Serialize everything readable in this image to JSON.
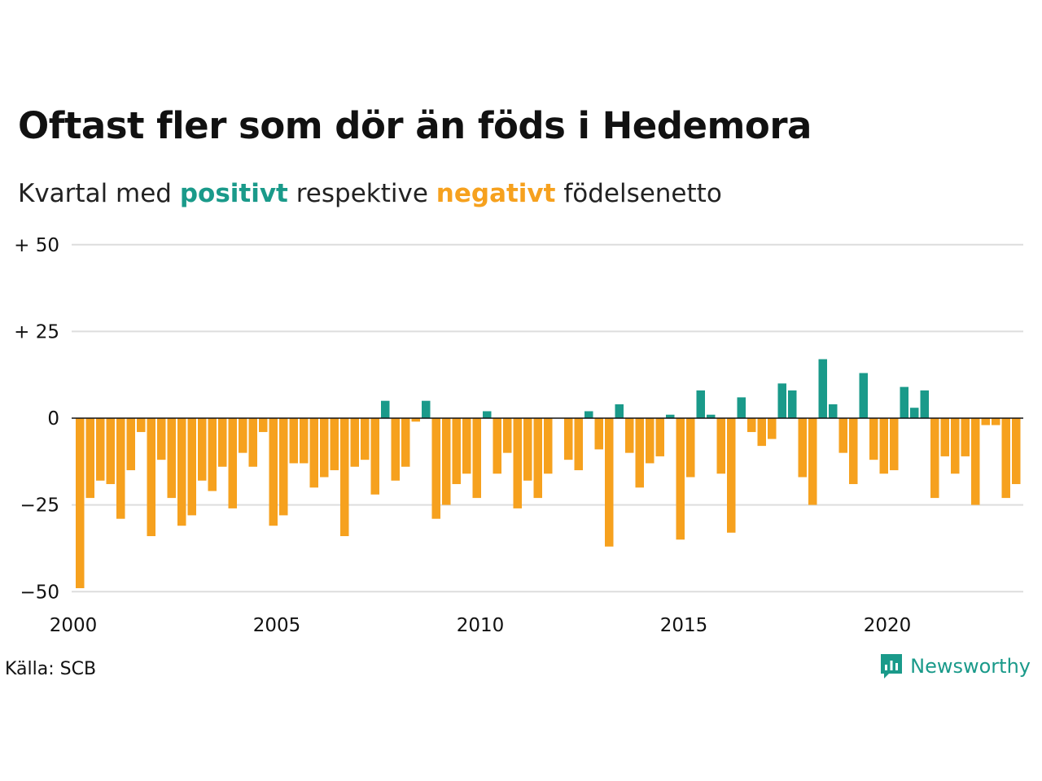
{
  "title": "Oftast fler som dör än föds i Hedemora",
  "subtitle": {
    "prefix": "Kvartal med ",
    "positive_word": "positivt",
    "middle": " respektive ",
    "negative_word": "negativt",
    "suffix": " födelsenetto"
  },
  "source": "Källa: SCB",
  "brand": "Newsworthy",
  "colors": {
    "positive": "#1a9a8a",
    "negative": "#f6a11e",
    "grid": "#dddddd",
    "zero_line": "#111111"
  },
  "chart_data": {
    "type": "bar",
    "y_ticks": [
      {
        "value": 50,
        "label": "+ 50"
      },
      {
        "value": 25,
        "label": "+ 25"
      },
      {
        "value": 0,
        "label": "0"
      },
      {
        "value": -25,
        "label": "−25"
      },
      {
        "value": -50,
        "label": "−50"
      }
    ],
    "x_ticks": [
      "2000",
      "2005",
      "2010",
      "2015",
      "2020"
    ],
    "ylim": [
      -50,
      50
    ],
    "grid": true,
    "start_year": 2000,
    "values": [
      -49,
      -23,
      -18,
      -19,
      -29,
      -15,
      -4,
      -34,
      -12,
      -23,
      -31,
      -28,
      -18,
      -21,
      -14,
      -26,
      -10,
      -14,
      -4,
      -31,
      -28,
      -13,
      -13,
      -20,
      -17,
      -15,
      -34,
      -14,
      -12,
      -22,
      5,
      -18,
      -14,
      -1,
      5,
      -29,
      -25,
      -19,
      -16,
      -23,
      2,
      -16,
      -10,
      -26,
      -18,
      -23,
      -16,
      0,
      -12,
      -15,
      2,
      -9,
      -37,
      4,
      -10,
      -20,
      -13,
      -11,
      1,
      -35,
      -17,
      8,
      1,
      -16,
      -33,
      6,
      -4,
      -8,
      -6,
      10,
      8,
      -17,
      -25,
      17,
      4,
      -10,
      -19,
      13,
      -12,
      -16,
      -15,
      9,
      3,
      8,
      -23,
      -11,
      -16,
      -11,
      -25,
      -2,
      -2,
      -23,
      -19
    ]
  }
}
